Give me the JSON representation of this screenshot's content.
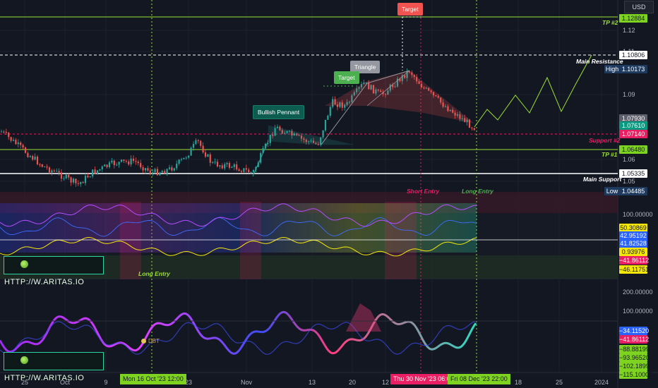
{
  "currency": "USD",
  "chart_data": {
    "type": "candlestick",
    "symbol_currency": "USD",
    "price_axis_ticks": [
      1.12,
      1.11,
      1.09,
      1.06,
      1.05
    ],
    "price_tags": [
      {
        "value": "1.12884",
        "bg": "#7ed321",
        "fg": "#131722"
      },
      {
        "value": "1.10806",
        "bg": "#ffffff",
        "fg": "#131722"
      },
      {
        "value": "1.10173",
        "bg": "#1e3a5f",
        "fg": "#ffffff",
        "label": "High"
      },
      {
        "value": "1.07930",
        "bg": "#5d606b",
        "fg": "#ffffff"
      },
      {
        "value": "1.07610",
        "bg": "#089981",
        "fg": "#ffffff"
      },
      {
        "value": "1.07140",
        "bg": "#e91e63",
        "fg": "#ffffff"
      },
      {
        "value": "1.06480",
        "bg": "#7ed321",
        "fg": "#131722"
      },
      {
        "value": "1.05335",
        "bg": "#ffffff",
        "fg": "#131722"
      },
      {
        "value": "1.04485",
        "bg": "#1e3a5f",
        "fg": "#ffffff",
        "label": "Low"
      }
    ],
    "levels": [
      {
        "name": "TP #2",
        "price": 1.12884,
        "color": "#9be034"
      },
      {
        "name": "Main Resistance",
        "price": 1.10806,
        "color": "#ffffff"
      },
      {
        "name": "Support #2",
        "price": 1.0714,
        "color": "#e91e63"
      },
      {
        "name": "TP #1",
        "price": 1.0648,
        "color": "#9be034"
      },
      {
        "name": "Main Support",
        "price": 1.05335,
        "color": "#ffffff"
      }
    ],
    "annotations": [
      "Target",
      "Triangle",
      "Target",
      "Bullish Pennant",
      "Short Entry",
      "Long Entry",
      "Long Entry",
      "DBT"
    ],
    "osc1_ticks": [
      "100.00000"
    ],
    "osc1_tags": [
      {
        "value": "50.30869",
        "bg": "#f5e60a",
        "fg": "#131722"
      },
      {
        "value": "42.95192",
        "bg": "#2962ff",
        "fg": "#ffffff"
      },
      {
        "value": "41.82528",
        "bg": "#2962ff",
        "fg": "#ffffff"
      },
      {
        "value": "0.93976",
        "bg": "#f5e60a",
        "fg": "#131722"
      },
      {
        "value": "−41.86112",
        "bg": "#e91e63",
        "fg": "#ffffff"
      },
      {
        "value": "−46.11751",
        "bg": "#f5e60a",
        "fg": "#131722"
      }
    ],
    "osc2_ticks": [
      "200.00000",
      "100.00000"
    ],
    "osc2_tags": [
      {
        "value": "−34.11520",
        "bg": "#2962ff",
        "fg": "#ffffff"
      },
      {
        "value": "−41.86112",
        "bg": "#e91e63",
        "fg": "#ffffff"
      },
      {
        "value": "−88.88199",
        "bg": "#7ed321",
        "fg": "#131722"
      },
      {
        "value": "−93.96520",
        "bg": "#7ed321",
        "fg": "#131722"
      },
      {
        "value": "−102.18999",
        "bg": "#7ed321",
        "fg": "#131722"
      },
      {
        "value": "−115.10007",
        "bg": "#7ed321",
        "fg": "#131722"
      }
    ],
    "x_labels": [
      "25",
      "Oct",
      "9",
      "23",
      "Nov",
      "13",
      "20",
      "12",
      "18",
      "25",
      "2024"
    ],
    "x_highlights": [
      {
        "text": "Mon 16 Oct '23   12:00",
        "bg": "#7ed321",
        "fg": "#131722"
      },
      {
        "text": "Thu 30 Nov '23   06:00",
        "bg": "#e91e63",
        "fg": "#ffffff"
      },
      {
        "text": "Fri 08 Dec '23   22:00",
        "bg": "#7ed321",
        "fg": "#131722"
      }
    ]
  },
  "labels": {
    "tp2": "TP #2",
    "tp1": "TP #1",
    "main_resistance": "Main Resistance",
    "support2": "Support #2",
    "main_support": "Main Support",
    "short_entry": "Short Entry",
    "long_entry_top": "Long Entry",
    "long_entry_osc": "Long Entry",
    "dbt": "DBT"
  },
  "callouts": {
    "target_top": "Target",
    "triangle": "Triangle",
    "target_mid": "Target",
    "bullish_pennant": "Bullish Pennant"
  },
  "brand": {
    "text1": "HTTP://W.ARITAS.IO",
    "text2": "HTTP://W.ARITAS.IO"
  }
}
